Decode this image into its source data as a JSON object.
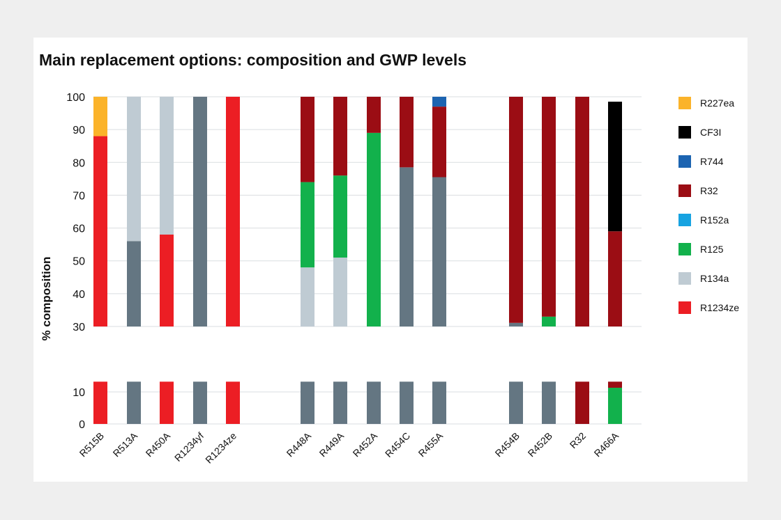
{
  "chart_data": {
    "type": "bar",
    "stacked": true,
    "title": "Main replacement options: composition and GWP levels",
    "xlabel": "",
    "ylabel": "% composition",
    "y_upper_range": [
      30,
      100
    ],
    "y_upper_ticks": [
      "100",
      "90",
      "80",
      "70",
      "60",
      "50",
      "40",
      "30"
    ],
    "y_lower_ticks": [
      "10",
      "0"
    ],
    "y_axis_break": true,
    "grid": true,
    "legend_position": "right",
    "categories": [
      "R515B",
      "R513A",
      "R450A",
      "R1234yf",
      "R1234ze",
      "R448A",
      "R449A",
      "R452A",
      "R454C",
      "R455A",
      "R454B",
      "R452B",
      "R32",
      "R466A"
    ],
    "category_groups": [
      [
        "R515B",
        "R513A",
        "R450A",
        "R1234yf",
        "R1234ze"
      ],
      [
        "R448A",
        "R449A",
        "R452A",
        "R454C",
        "R455A"
      ],
      [
        "R454B",
        "R452B",
        "R32",
        "R466A"
      ]
    ],
    "legend": [
      {
        "name": "R227ea",
        "color": "#fbb32a"
      },
      {
        "name": "CF3I",
        "color": "#000000"
      },
      {
        "name": "R744",
        "color": "#1c64b1"
      },
      {
        "name": "R32",
        "color": "#9b0d14"
      },
      {
        "name": "R152a",
        "color": "#17a3e1"
      },
      {
        "name": "R125",
        "color": "#12b14c"
      },
      {
        "name": "R134a",
        "color": "#bfcbd3"
      },
      {
        "name": "R1234ze",
        "color": "#ec1e24"
      }
    ],
    "series_colors": {
      "R1234yf": "#647682",
      "R1234ze": "#ec1e24",
      "R134a": "#bfcbd3",
      "R125": "#12b14c",
      "R152a": "#17a3e1",
      "R32": "#9b0d14",
      "R744": "#1c64b1",
      "CF3I": "#000000",
      "R227ea": "#fbb32a"
    },
    "stacks": [
      {
        "category": "R515B",
        "segments": [
          {
            "series": "R1234ze",
            "value": 88
          },
          {
            "series": "R227ea",
            "value": 12
          }
        ]
      },
      {
        "category": "R513A",
        "segments": [
          {
            "series": "R1234yf",
            "value": 56
          },
          {
            "series": "R134a",
            "value": 44
          }
        ]
      },
      {
        "category": "R450A",
        "segments": [
          {
            "series": "R1234ze",
            "value": 58
          },
          {
            "series": "R134a",
            "value": 42
          }
        ]
      },
      {
        "category": "R1234yf",
        "segments": [
          {
            "series": "R1234yf",
            "value": 100
          }
        ]
      },
      {
        "category": "R1234ze",
        "segments": [
          {
            "series": "R1234ze",
            "value": 100
          }
        ]
      },
      {
        "category": "R448A",
        "segments": [
          {
            "series": "R1234yf",
            "value": 20
          },
          {
            "series": "R134a",
            "value": 28
          },
          {
            "series": "R125",
            "value": 26
          },
          {
            "series": "R32",
            "value": 26
          }
        ]
      },
      {
        "category": "R449A",
        "segments": [
          {
            "series": "R1234yf",
            "value": 25
          },
          {
            "series": "R134a",
            "value": 26
          },
          {
            "series": "R125",
            "value": 25
          },
          {
            "series": "R32",
            "value": 24
          }
        ]
      },
      {
        "category": "R452A",
        "segments": [
          {
            "series": "R1234yf",
            "value": 30
          },
          {
            "series": "R125",
            "value": 59
          },
          {
            "series": "R32",
            "value": 11
          }
        ]
      },
      {
        "category": "R454C",
        "segments": [
          {
            "series": "R1234yf",
            "value": 78.5
          },
          {
            "series": "R32",
            "value": 21.5
          }
        ]
      },
      {
        "category": "R455A",
        "segments": [
          {
            "series": "R1234yf",
            "value": 75.5
          },
          {
            "series": "R32",
            "value": 21.5
          },
          {
            "series": "R744",
            "value": 3
          }
        ]
      },
      {
        "category": "R454B",
        "segments": [
          {
            "series": "R1234yf",
            "value": 31.1
          },
          {
            "series": "R32",
            "value": 68.9
          }
        ]
      },
      {
        "category": "R452B",
        "segments": [
          {
            "series": "R1234yf",
            "value": 26
          },
          {
            "series": "R125",
            "value": 7
          },
          {
            "series": "R32",
            "value": 67
          }
        ]
      },
      {
        "category": "R32",
        "segments": [
          {
            "series": "R32",
            "value": 100
          }
        ]
      },
      {
        "category": "R466A",
        "segments": [
          {
            "series": "R125",
            "value": 10
          },
          {
            "series": "R32",
            "value": 49
          },
          {
            "series": "CF3I",
            "value": 39.5
          }
        ]
      }
    ],
    "lower_panel_segments": [
      {
        "category": "R515B",
        "series": "R1234ze"
      },
      {
        "category": "R513A",
        "series": "R1234yf"
      },
      {
        "category": "R450A",
        "series": "R1234ze"
      },
      {
        "category": "R1234yf",
        "series": "R1234yf"
      },
      {
        "category": "R1234ze",
        "series": "R1234ze"
      },
      {
        "category": "R448A",
        "series": "R1234yf"
      },
      {
        "category": "R449A",
        "series": "R1234yf"
      },
      {
        "category": "R452A",
        "series": "R1234yf"
      },
      {
        "category": "R454C",
        "series": "R1234yf"
      },
      {
        "category": "R455A",
        "series": "R1234yf"
      },
      {
        "category": "R454B",
        "series": "R1234yf"
      },
      {
        "category": "R452B",
        "series": "R1234yf"
      },
      {
        "category": "R32",
        "series": "R32"
      },
      {
        "category": "R466A",
        "series": "R125",
        "split": [
          {
            "series": "R125",
            "value": 11.3
          },
          {
            "series": "R32",
            "value": 13.2
          }
        ]
      }
    ],
    "lower_panel_top": 13.2
  }
}
